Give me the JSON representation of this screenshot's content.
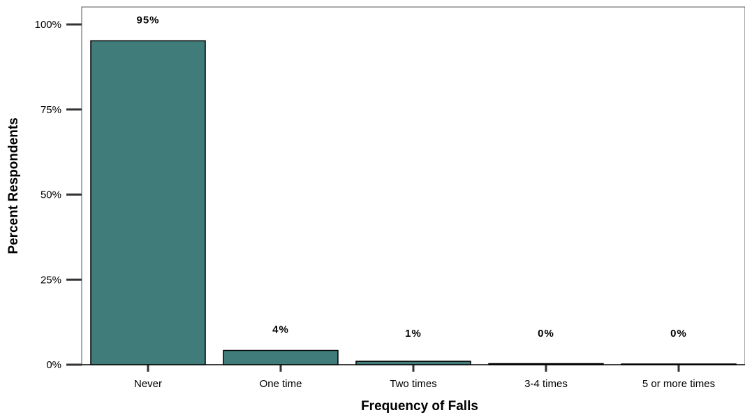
{
  "chart_data": {
    "type": "bar",
    "title": "",
    "xlabel": "Frequency of Falls",
    "ylabel": "Percent  Respondents",
    "categories": [
      "Never",
      "One time",
      "Two times",
      "3-4 times",
      "5 or more times"
    ],
    "values": [
      95.2,
      4.2,
      1.0,
      0.3,
      0.2
    ],
    "data_labels": [
      "95%",
      "4%",
      "1%",
      "0%",
      "0%"
    ],
    "yticks": [
      0,
      25,
      50,
      75,
      100
    ],
    "ytick_labels": [
      "0%",
      "25%",
      "50%",
      "75%",
      "100%"
    ],
    "ylim": [
      0,
      105
    ],
    "bar_color": "#407d7a",
    "bar_edge_color": "#000000",
    "grid": false,
    "legend": "none"
  }
}
